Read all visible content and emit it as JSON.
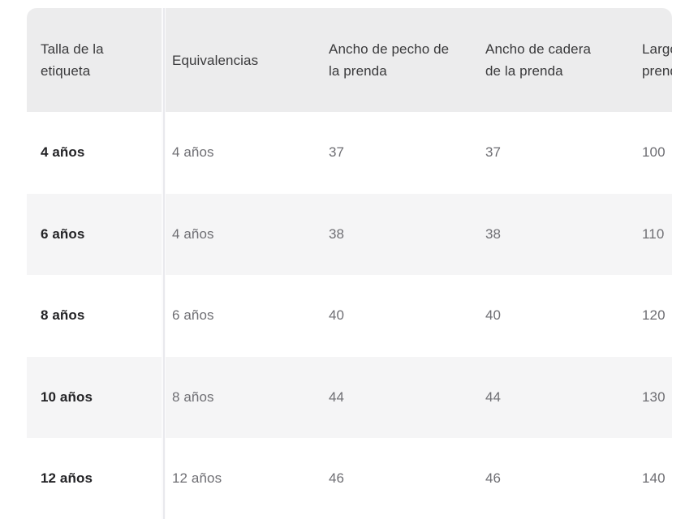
{
  "colors": {
    "header-bg": "#ececed",
    "stripe-bg": "#f5f5f6",
    "header-text": "#3a3a3c",
    "label-text": "#232326",
    "cell-text": "#6e6e73",
    "divider": "#e9e9ed"
  },
  "table": {
    "columns": [
      {
        "label": "Talla de la etiqueta"
      },
      {
        "label": "Equivalencias"
      },
      {
        "label": "Ancho de pecho de la prenda"
      },
      {
        "label": "Ancho de cadera de la prenda"
      },
      {
        "label": "Largo de la prenda"
      }
    ],
    "rows": [
      {
        "cells": [
          "4 años",
          "4 años",
          "37",
          "37",
          "100"
        ]
      },
      {
        "cells": [
          "6 años",
          "4 años",
          "38",
          "38",
          "110"
        ]
      },
      {
        "cells": [
          "8 años",
          "6 años",
          "40",
          "40",
          "120"
        ]
      },
      {
        "cells": [
          "10 años",
          "8 años",
          "44",
          "44",
          "130"
        ]
      },
      {
        "cells": [
          "12 años",
          "12 años",
          "46",
          "46",
          "140"
        ]
      }
    ]
  }
}
